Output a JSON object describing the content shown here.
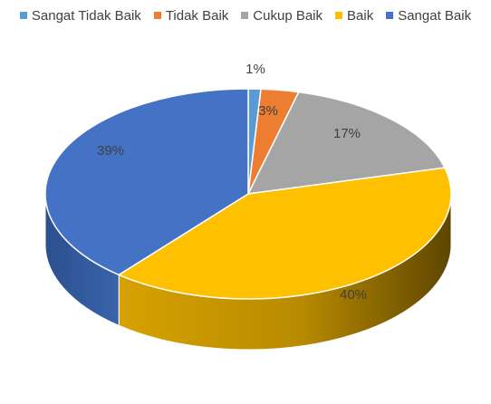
{
  "chart_data": {
    "type": "pie",
    "style": "3d",
    "legend_position": "top",
    "categories": [
      "Sangat Tidak Baik",
      "Tidak Baik",
      "Cukup Baik",
      "Baik",
      "Sangat Baik"
    ],
    "values": [
      1,
      3,
      17,
      40,
      39
    ],
    "labels": [
      "1%",
      "3%",
      "17%",
      "40%",
      "39%"
    ],
    "colors": [
      "#5B9BD5",
      "#ED7D31",
      "#A5A5A5",
      "#FFC000",
      "#4472C4"
    ]
  }
}
